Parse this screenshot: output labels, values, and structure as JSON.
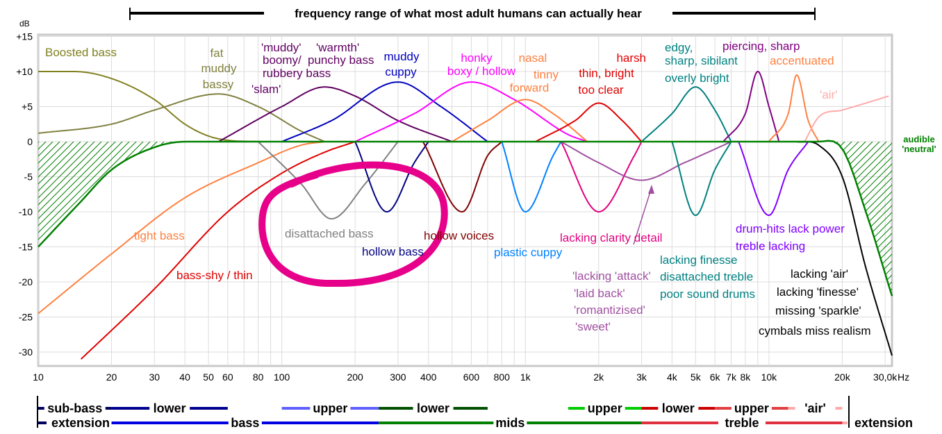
{
  "chart_data": {
    "type": "line",
    "title": "frequency range of what most adult humans can actually hear",
    "y_unit": "dB",
    "y_ticks": [
      "+15",
      "+10",
      "+5",
      "0",
      "-5",
      "-10",
      "-15",
      "-20",
      "-25",
      "-30"
    ],
    "y_tick_values": [
      15,
      10,
      5,
      0,
      -5,
      -10,
      -15,
      -20,
      -25,
      -30
    ],
    "x_ticks": [
      "10",
      "20",
      "30",
      "40",
      "50",
      "60",
      "80",
      "100",
      "200",
      "300",
      "400",
      "600",
      "800",
      "1k",
      "2k",
      "3k",
      "4k",
      "5k",
      "6k",
      "7k",
      "8k",
      "10k",
      "20k",
      "30,0k"
    ],
    "x_tick_values": [
      10,
      20,
      30,
      40,
      50,
      60,
      80,
      100,
      200,
      300,
      400,
      600,
      800,
      1000,
      2000,
      3000,
      4000,
      5000,
      6000,
      7000,
      8000,
      10000,
      20000,
      30000
    ],
    "x_unit": "Hz",
    "xlim": [
      10,
      32000
    ],
    "ylim": [
      -31,
      15
    ],
    "x_scale": "log",
    "grid": true,
    "neutral_label": "audible 'neutral'",
    "series": [
      {
        "name": "Boosted bass",
        "color": "#808020",
        "points": [
          [
            10,
            10
          ],
          [
            14,
            10
          ],
          [
            20,
            9
          ],
          [
            30,
            6
          ],
          [
            40,
            2.5
          ],
          [
            50,
            0.8
          ],
          [
            60,
            0.2
          ],
          [
            80,
            0
          ]
        ]
      },
      {
        "name": "fat muddy bassy",
        "color": "#808040",
        "points": [
          [
            10,
            1.2
          ],
          [
            20,
            2.5
          ],
          [
            30,
            4.5
          ],
          [
            55,
            6.8
          ],
          [
            80,
            5
          ],
          [
            120,
            1.5
          ],
          [
            150,
            0
          ]
        ]
      },
      {
        "name": "'slam'",
        "color": "#600060",
        "points": [
          [
            55,
            0
          ],
          [
            100,
            5
          ],
          [
            150,
            7.8
          ],
          [
            200,
            6.5
          ],
          [
            300,
            3
          ],
          [
            500,
            0
          ]
        ]
      },
      {
        "name": "muddy cuppy",
        "color": "#0000c0",
        "points": [
          [
            100,
            0
          ],
          [
            160,
            3
          ],
          [
            300,
            8.5
          ],
          [
            450,
            5
          ],
          [
            700,
            0
          ]
        ]
      },
      {
        "name": "honky boxy / hollow",
        "color": "#ff00ff",
        "points": [
          [
            200,
            0
          ],
          [
            350,
            4
          ],
          [
            600,
            8.5
          ],
          [
            900,
            6
          ],
          [
            1500,
            1
          ],
          [
            1800,
            0
          ]
        ]
      },
      {
        "name": "nasal tinny forward",
        "color": "#ff8040",
        "points": [
          [
            500,
            0
          ],
          [
            700,
            3
          ],
          [
            1000,
            6
          ],
          [
            1300,
            4
          ],
          [
            1800,
            0
          ]
        ]
      },
      {
        "name": "thin, bright too clear",
        "color": "#e00000",
        "points": [
          [
            1100,
            0
          ],
          [
            1600,
            3
          ],
          [
            2000,
            5.5
          ],
          [
            2500,
            3
          ],
          [
            3000,
            0
          ]
        ]
      },
      {
        "name": "edgy, sharp, sibilant overly bright",
        "color": "#008080",
        "points": [
          [
            3000,
            0
          ],
          [
            4000,
            4
          ],
          [
            5000,
            7.8
          ],
          [
            6000,
            4.5
          ],
          [
            7000,
            0
          ]
        ]
      },
      {
        "name": "piercing, sharp",
        "color": "#800080",
        "points": [
          [
            6500,
            0
          ],
          [
            8000,
            4
          ],
          [
            9000,
            10
          ],
          [
            10000,
            5
          ],
          [
            11000,
            0
          ]
        ]
      },
      {
        "name": "accentuated",
        "color": "#ff8040",
        "points": [
          [
            10000,
            0
          ],
          [
            12000,
            4
          ],
          [
            13000,
            9.5
          ],
          [
            14500,
            3
          ],
          [
            16000,
            0
          ]
        ]
      },
      {
        "name": "'air'",
        "color": "#ffaaaa",
        "points": [
          [
            14000,
            0
          ],
          [
            16000,
            3.5
          ],
          [
            20000,
            4.5
          ],
          [
            25000,
            5.5
          ],
          [
            31000,
            6.5
          ]
        ]
      },
      {
        "name": "tight bass",
        "color": "#ff8040",
        "points": [
          [
            10,
            -24.5
          ],
          [
            20,
            -16
          ],
          [
            40,
            -8
          ],
          [
            80,
            -3
          ],
          [
            120,
            -0.5
          ],
          [
            150,
            0
          ]
        ]
      },
      {
        "name": "bass-shy / thin",
        "color": "#e00000",
        "points": [
          [
            15,
            -31
          ],
          [
            30,
            -21
          ],
          [
            60,
            -10
          ],
          [
            100,
            -4.5
          ],
          [
            150,
            -1.5
          ],
          [
            200,
            0
          ]
        ]
      },
      {
        "name": "disattached bass",
        "color": "#808080",
        "points": [
          [
            80,
            0
          ],
          [
            120,
            -6
          ],
          [
            160,
            -11
          ],
          [
            220,
            -6
          ],
          [
            300,
            0
          ]
        ]
      },
      {
        "name": "hollow bass",
        "color": "#000080",
        "points": [
          [
            200,
            0
          ],
          [
            270,
            -10
          ],
          [
            350,
            -3
          ],
          [
            400,
            0
          ]
        ]
      },
      {
        "name": "hollow voices",
        "color": "#800000",
        "points": [
          [
            380,
            0
          ],
          [
            550,
            -10
          ],
          [
            700,
            -2
          ],
          [
            800,
            0
          ]
        ]
      },
      {
        "name": "plastic cuppy",
        "color": "#0080ff",
        "points": [
          [
            800,
            0
          ],
          [
            1000,
            -10
          ],
          [
            1300,
            -2
          ],
          [
            1400,
            0
          ]
        ]
      },
      {
        "name": "lacking clarity detail",
        "color": "#e0007f",
        "points": [
          [
            1400,
            0
          ],
          [
            2000,
            -10
          ],
          [
            2800,
            -2
          ],
          [
            3000,
            0
          ]
        ]
      },
      {
        "name": "'lacking 'attack' 'laid back' 'romantizised' 'sweet'",
        "color": "#a050a0",
        "points": [
          [
            1400,
            0
          ],
          [
            2000,
            -3
          ],
          [
            3000,
            -5.5
          ],
          [
            4500,
            -3
          ],
          [
            7000,
            0
          ]
        ]
      },
      {
        "name": "lacking finesse disattached treble poor sound drums",
        "color": "#008080",
        "points": [
          [
            4000,
            0
          ],
          [
            5000,
            -10.5
          ],
          [
            6000,
            -4
          ],
          [
            7000,
            0
          ]
        ]
      },
      {
        "name": "drum-hits lack power treble lacking",
        "color": "#8000ff",
        "points": [
          [
            7500,
            0
          ],
          [
            10000,
            -10.5
          ],
          [
            12000,
            -4
          ],
          [
            14500,
            0
          ]
        ]
      },
      {
        "name": "lacking 'air' lacking 'finesse' missing 'sparkle' cymbals miss realism",
        "color": "#000000",
        "points": [
          [
            13000,
            0
          ],
          [
            16000,
            -0.5
          ],
          [
            20000,
            -5
          ],
          [
            25000,
            -18
          ],
          [
            32000,
            -30.5
          ]
        ]
      },
      {
        "name": "audible 'neutral'",
        "color": "#008000",
        "points": [
          [
            10,
            -15
          ],
          [
            15,
            -8.5
          ],
          [
            20,
            -4
          ],
          [
            30,
            -0.8
          ],
          [
            40,
            0
          ],
          [
            16000,
            0
          ],
          [
            20000,
            -1
          ],
          [
            25000,
            -10
          ],
          [
            32000,
            -22
          ]
        ]
      }
    ],
    "annotations": [
      {
        "text": "Boosted bass",
        "color": "#808020"
      },
      {
        "text": "fat",
        "color": "#808040"
      },
      {
        "text": "muddy",
        "color": "#808040"
      },
      {
        "text": "bassy",
        "color": "#808040"
      },
      {
        "text": "'muddy'",
        "color": "#600060"
      },
      {
        "text": "boomy/",
        "color": "#600060"
      },
      {
        "text": "rubbery bass",
        "color": "#600060"
      },
      {
        "text": "'slam'",
        "color": "#600060"
      },
      {
        "text": "'warmth'",
        "color": "#600060"
      },
      {
        "text": "punchy bass",
        "color": "#600060"
      },
      {
        "text": "muddy",
        "color": "#0000c0"
      },
      {
        "text": "cuppy",
        "color": "#0000c0"
      },
      {
        "text": "honky",
        "color": "#ff00ff"
      },
      {
        "text": "boxy / hollow",
        "color": "#ff00ff"
      },
      {
        "text": "nasal",
        "color": "#ff8040"
      },
      {
        "text": "tinny",
        "color": "#ff8040"
      },
      {
        "text": "forward",
        "color": "#ff8040"
      },
      {
        "text": "harsh",
        "color": "#e00000"
      },
      {
        "text": "thin, bright",
        "color": "#e00000"
      },
      {
        "text": "too clear",
        "color": "#e00000"
      },
      {
        "text": "edgy,",
        "color": "#008080"
      },
      {
        "text": "sharp, sibilant",
        "color": "#008080"
      },
      {
        "text": "overly bright",
        "color": "#008080"
      },
      {
        "text": "piercing, sharp",
        "color": "#800080"
      },
      {
        "text": "accentuated",
        "color": "#ff8040"
      },
      {
        "text": "'air'",
        "color": "#ffaaaa"
      },
      {
        "text": "tight bass",
        "color": "#ff8040"
      },
      {
        "text": "bass-shy / thin",
        "color": "#e00000"
      },
      {
        "text": "disattached bass",
        "color": "#808080"
      },
      {
        "text": "hollow bass",
        "color": "#000080"
      },
      {
        "text": "hollow voices",
        "color": "#800000"
      },
      {
        "text": "plastic cuppy",
        "color": "#0080ff"
      },
      {
        "text": "lacking clarity detail",
        "color": "#e0007f"
      },
      {
        "text": "'lacking 'attack'",
        "color": "#a050a0"
      },
      {
        "text": "'laid back'",
        "color": "#a050a0"
      },
      {
        "text": "'romantizised'",
        "color": "#a050a0"
      },
      {
        "text": "'sweet'",
        "color": "#a050a0"
      },
      {
        "text": "lacking finesse",
        "color": "#008080"
      },
      {
        "text": "disattached treble",
        "color": "#008080"
      },
      {
        "text": "poor sound drums",
        "color": "#008080"
      },
      {
        "text": "drum-hits lack power",
        "color": "#8000ff"
      },
      {
        "text": "treble lacking",
        "color": "#8000ff"
      },
      {
        "text": "lacking 'air'",
        "color": "#000000"
      },
      {
        "text": "lacking 'finesse'",
        "color": "#000000"
      },
      {
        "text": "missing 'sparkle'",
        "color": "#000000"
      },
      {
        "text": "cymbals miss realism",
        "color": "#000000"
      },
      {
        "text": "audible",
        "color": "#008000"
      },
      {
        "text": "'neutral'",
        "color": "#008000"
      }
    ],
    "bands_top": [
      {
        "label": "sub-bass",
        "from": 10,
        "to": 20,
        "color": "#000060"
      },
      {
        "label": "lower",
        "from": 20,
        "to": 60,
        "color": "#000090"
      },
      {
        "label": "upper",
        "from": 100,
        "to": 250,
        "color": "#6060ff"
      },
      {
        "label": "lower",
        "from": 250,
        "to": 700,
        "color": "#005000"
      },
      {
        "label": "upper",
        "from": 1500,
        "to": 3000,
        "color": "#00cc00"
      },
      {
        "label": "lower",
        "from": 3000,
        "to": 6000,
        "color": "#cc0000"
      },
      {
        "label": "upper",
        "from": 6000,
        "to": 12000,
        "color": "#e04040"
      },
      {
        "label": "'air'",
        "from": 12000,
        "to": 20000,
        "color": "#ffaaaa"
      }
    ],
    "bands_bottom": [
      {
        "label": "extension",
        "from": 10,
        "to": 20,
        "color": "#000060"
      },
      {
        "label": "bass",
        "from": 20,
        "to": 250,
        "color": "#0000e0"
      },
      {
        "label": "mids",
        "from": 250,
        "to": 3000,
        "color": "#008000"
      },
      {
        "label": "treble",
        "from": 3000,
        "to": 20000,
        "color": "#e03040"
      },
      {
        "label": "extension",
        "from": 20000,
        "to": 32000,
        "color": "#ffaaaa"
      }
    ]
  }
}
